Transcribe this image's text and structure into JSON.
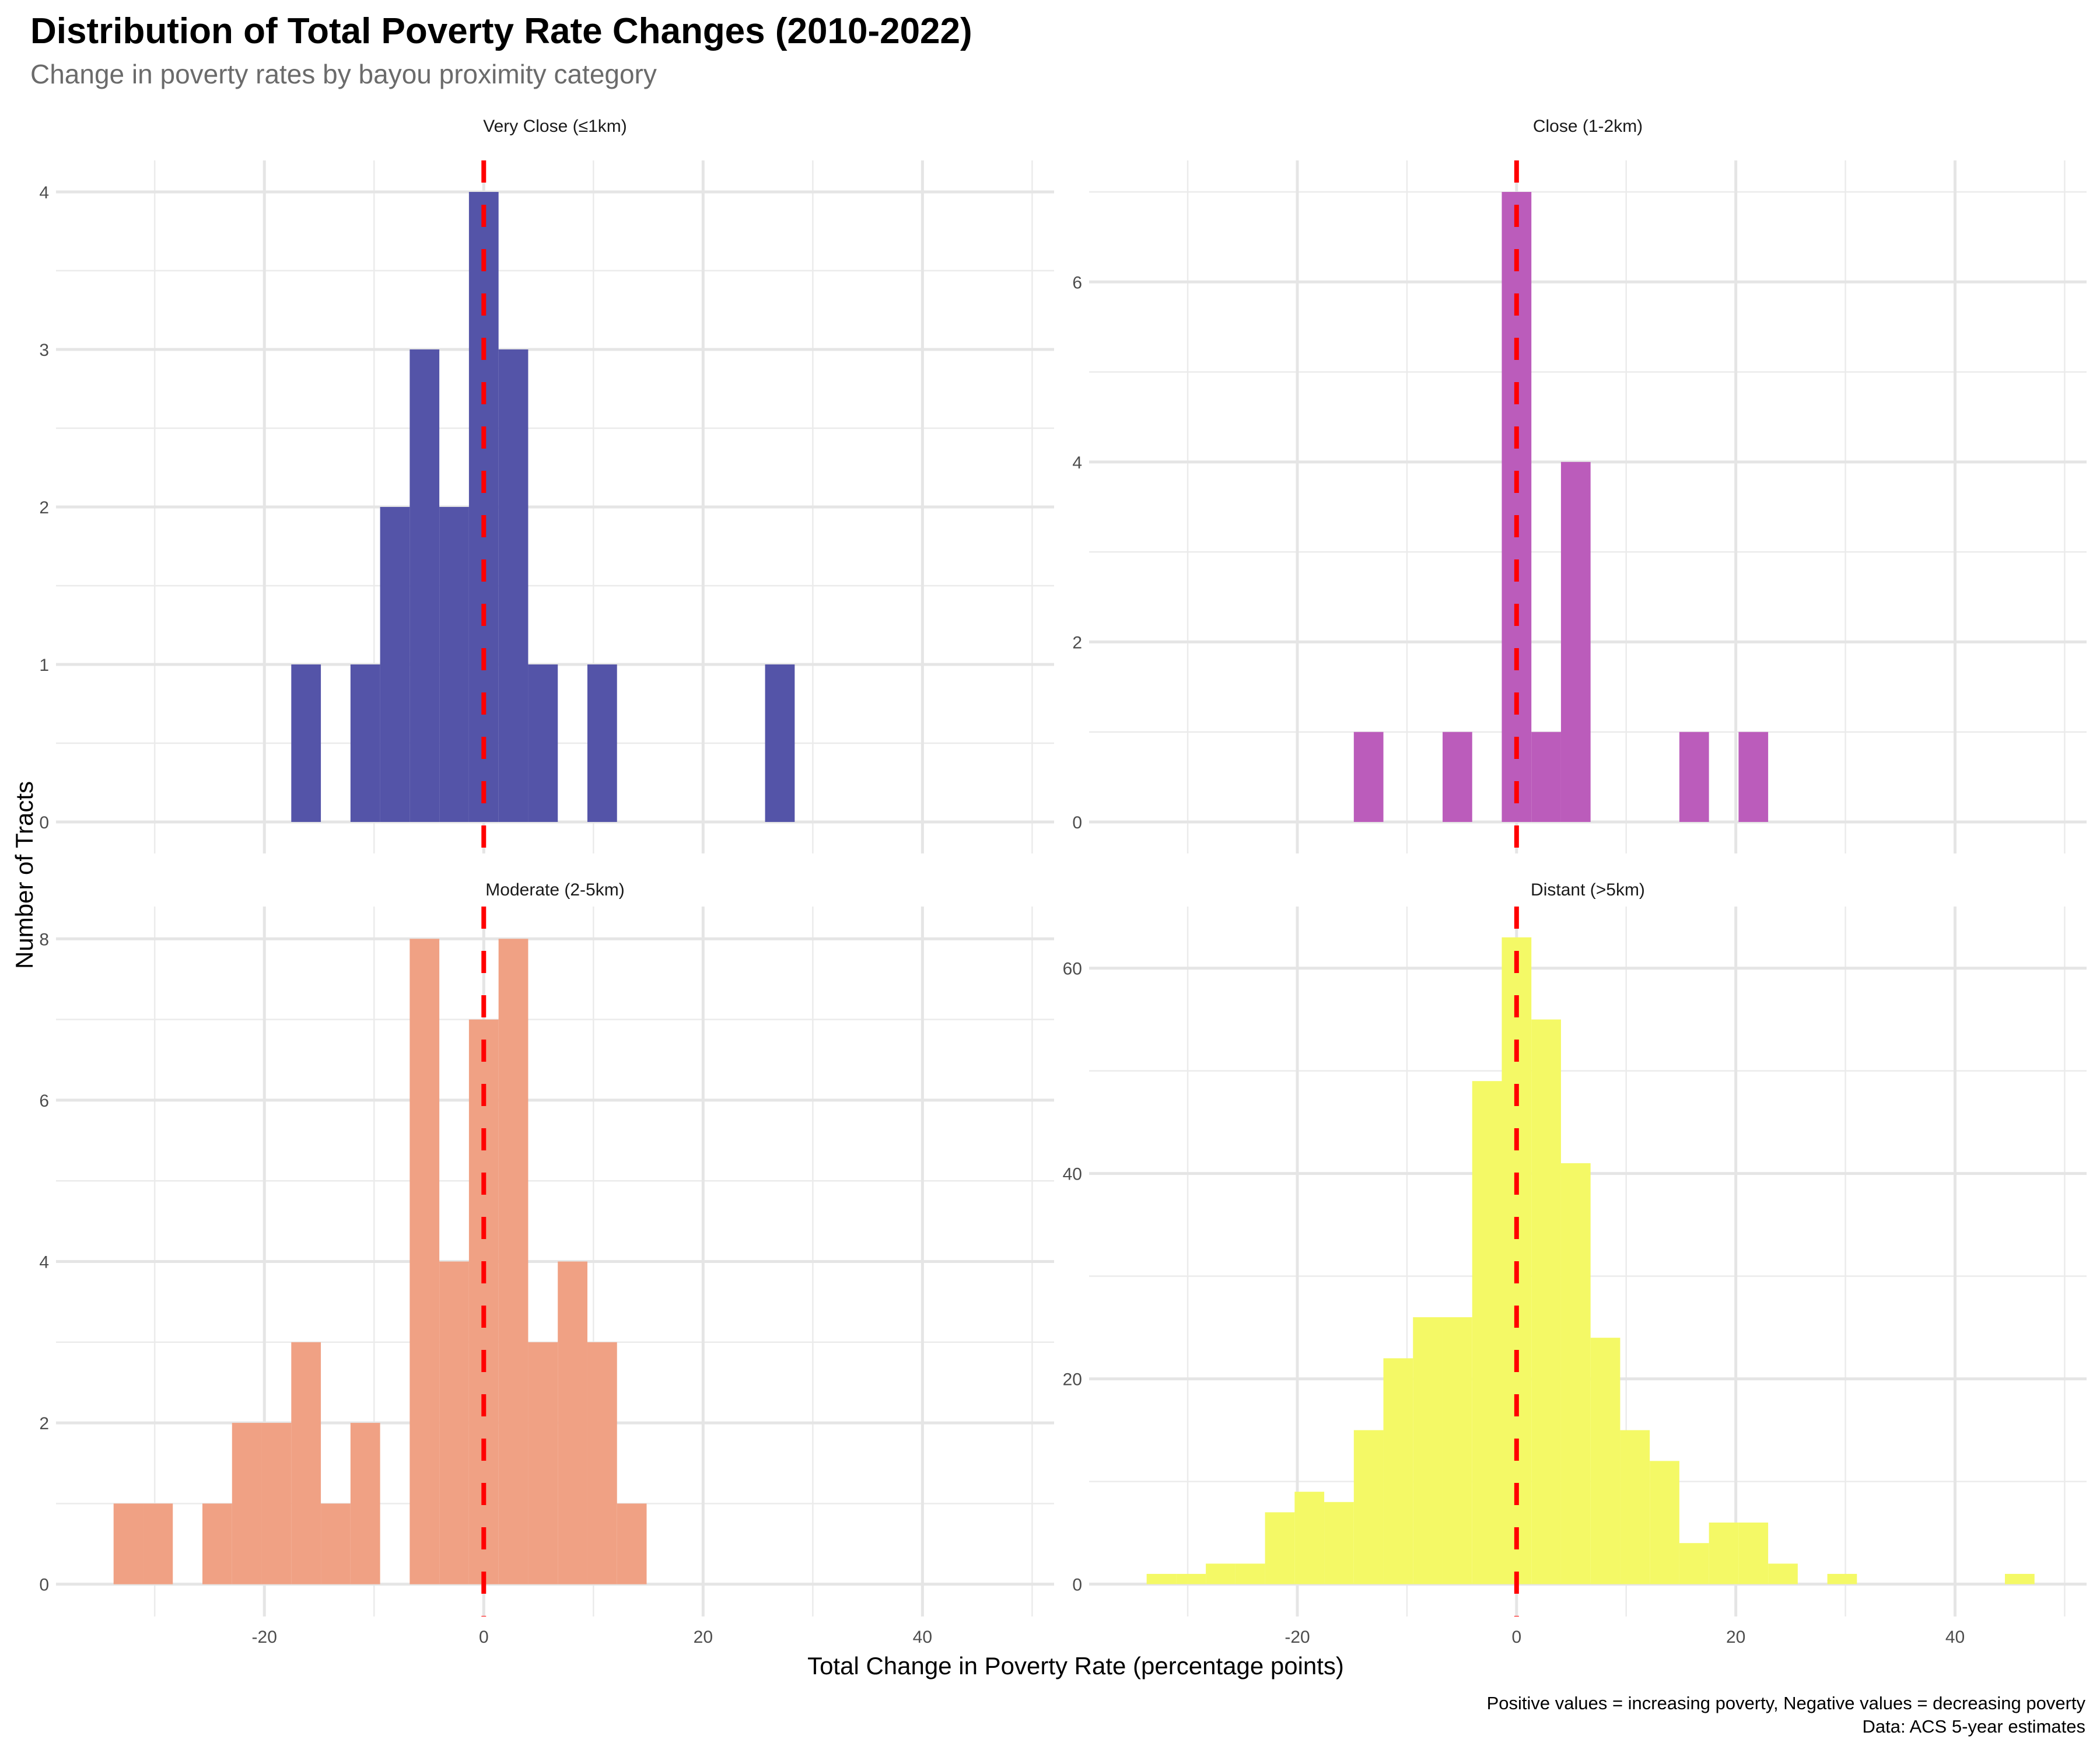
{
  "title": "Distribution of Total Poverty Rate Changes (2010-2022)",
  "subtitle": "Change in poverty rates by bayou proximity category",
  "xlabel": "Total Change in Poverty Rate (percentage points)",
  "ylabel": "Number of Tracts",
  "caption_lines": [
    "Positive values = increasing poverty, Negative values = decreasing poverty",
    "Data: ACS 5-year estimates"
  ],
  "reference_line": {
    "x": 0,
    "color": "#ff0000",
    "style": "dashed"
  },
  "chart_data": [
    {
      "type": "bar",
      "panel": "Very Close (≤1km)",
      "bin_width": 2.7,
      "x": [
        -16.2,
        -10.8,
        -8.1,
        -5.4,
        -2.7,
        0,
        2.7,
        5.4,
        10.8,
        27.0
      ],
      "values": [
        1,
        1,
        2,
        3,
        2,
        4,
        3,
        1,
        1,
        1
      ],
      "color": "#5454a8",
      "xlim": [
        -39,
        52
      ],
      "ylim": [
        0,
        4.2
      ],
      "x_ticks": [
        -20,
        0,
        20,
        40
      ],
      "y_ticks": [
        0,
        1,
        2,
        3,
        4
      ],
      "grid": true
    },
    {
      "type": "bar",
      "panel": "Close (1-2km)",
      "bin_width": 2.7,
      "x": [
        -13.5,
        -5.4,
        0,
        2.7,
        5.4,
        16.2,
        21.6
      ],
      "values": [
        1,
        1,
        7,
        1,
        4,
        1,
        1
      ],
      "color": "#bb5cbb",
      "xlim": [
        -39,
        52
      ],
      "ylim": [
        0,
        7.35
      ],
      "x_ticks": [
        -20,
        0,
        20,
        40
      ],
      "y_ticks": [
        0,
        2,
        4,
        6
      ],
      "grid": true
    },
    {
      "type": "bar",
      "panel": "Moderate (2-5km)",
      "bin_width": 2.7,
      "x": [
        -32.4,
        -29.7,
        -24.3,
        -21.6,
        -18.9,
        -16.2,
        -13.5,
        -10.8,
        -5.4,
        -2.7,
        0,
        2.7,
        5.4,
        8.1,
        10.8,
        13.5
      ],
      "values": [
        1,
        1,
        1,
        2,
        2,
        3,
        1,
        2,
        8,
        4,
        7,
        8,
        3,
        4,
        3,
        1
      ],
      "color": "#f0a184",
      "xlim": [
        -39,
        52
      ],
      "ylim": [
        0,
        8.4
      ],
      "x_ticks": [
        -20,
        0,
        20,
        40
      ],
      "y_ticks": [
        0,
        2,
        4,
        6,
        8
      ],
      "grid": true
    },
    {
      "type": "bar",
      "panel": "Distant (>5km)",
      "bin_width": 2.7,
      "x": [
        -32.4,
        -29.7,
        -27.0,
        -24.3,
        -21.6,
        -18.9,
        -16.2,
        -13.5,
        -10.8,
        -8.1,
        -5.4,
        -2.7,
        0,
        2.7,
        5.4,
        8.1,
        10.8,
        13.5,
        16.2,
        18.9,
        21.6,
        24.3,
        29.7,
        45.9
      ],
      "values": [
        1,
        1,
        2,
        2,
        7,
        9,
        8,
        15,
        22,
        26,
        26,
        49,
        63,
        55,
        41,
        24,
        15,
        12,
        4,
        6,
        6,
        2,
        1,
        1
      ],
      "color": "#f4f966",
      "xlim": [
        -39,
        52
      ],
      "ylim": [
        0,
        66
      ],
      "x_ticks": [
        -20,
        0,
        20,
        40
      ],
      "y_ticks": [
        0,
        20,
        40,
        60
      ],
      "grid": true
    }
  ]
}
